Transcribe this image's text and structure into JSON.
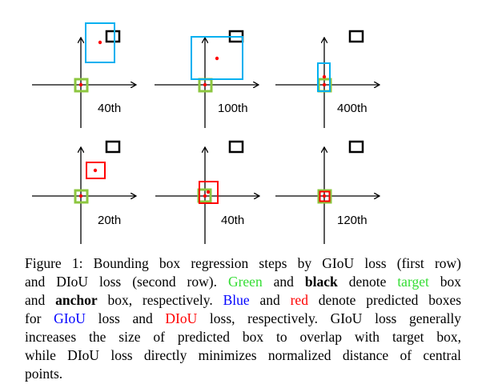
{
  "figure": {
    "rows": [
      {
        "loss": "GIoU",
        "panels": [
          {
            "label": "40th"
          },
          {
            "label": "100th"
          },
          {
            "label": "400th"
          }
        ]
      },
      {
        "loss": "DIoU",
        "panels": [
          {
            "label": "20th"
          },
          {
            "label": "40th"
          },
          {
            "label": "120th"
          }
        ]
      }
    ],
    "colors": {
      "target": "#8cc63f",
      "anchor": "#000000",
      "giou_pred": "#00b0f0",
      "diou_pred": "#ff0000",
      "center": "#ff0000"
    }
  },
  "caption": {
    "l1": "Figure 1: Bounding box regression steps by GIoU loss (first row)",
    "l2a": "and DIoU loss (second row).",
    "l2b": "Green",
    "l2c": "and",
    "l2d": "black",
    "l2e": "denote",
    "l2f": "target",
    "l2g": "box",
    "l3a": "and",
    "l3b": "anchor",
    "l3c": "box, respectively.",
    "l3d": "Blue",
    "l3e": "and",
    "l3f": "red",
    "l3g": "denote predicted boxes",
    "l4a": "for",
    "l4b": "GIoU",
    "l4c": "loss and",
    "l4d": "DIoU",
    "l4e": "loss, respectively. GIoU loss generally",
    "l5": "increases the size of predicted box to overlap with target box,",
    "l6": "while DIoU loss directly minimizes normalized distance of central",
    "l7": "points."
  }
}
